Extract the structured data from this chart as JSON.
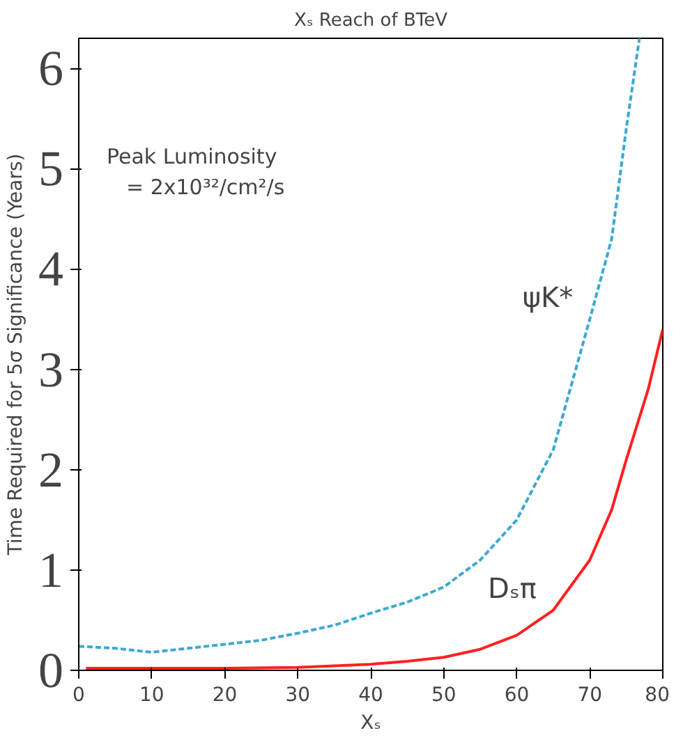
{
  "chart_data": {
    "type": "line",
    "title": "Xₛ Reach of BTeV",
    "xlabel": "Xₛ",
    "ylabel": "Time Required for 5σ Significance (Years)",
    "annotations": [
      "Peak Luminosity",
      "= 2x10³²/cm²/s"
    ],
    "xlim": [
      0,
      80
    ],
    "ylim": [
      0,
      6.3
    ],
    "xticks": [
      0,
      10,
      20,
      30,
      40,
      50,
      60,
      70,
      80
    ],
    "yticks": [
      0,
      1,
      2,
      3,
      4,
      5,
      6
    ],
    "grid": false,
    "legend": false,
    "series": [
      {
        "name": "ψK*",
        "color": "#3aa9d3",
        "line_style": "dashed",
        "x": [
          0,
          5,
          10,
          15,
          20,
          25,
          30,
          35,
          40,
          45,
          50,
          55,
          60,
          65,
          70,
          73,
          75,
          76.8
        ],
        "values": [
          0.24,
          0.22,
          0.18,
          0.22,
          0.26,
          0.3,
          0.37,
          0.45,
          0.57,
          0.68,
          0.83,
          1.1,
          1.5,
          2.2,
          3.5,
          4.3,
          5.4,
          6.3
        ]
      },
      {
        "name": "Dₛπ",
        "color": "#ff2020",
        "line_style": "solid",
        "x": [
          1,
          10,
          20,
          30,
          40,
          45,
          50,
          55,
          60,
          65,
          70,
          73,
          75,
          78,
          80
        ],
        "values": [
          0.02,
          0.02,
          0.02,
          0.03,
          0.06,
          0.09,
          0.13,
          0.21,
          0.35,
          0.6,
          1.1,
          1.6,
          2.1,
          2.8,
          3.4
        ]
      }
    ]
  }
}
